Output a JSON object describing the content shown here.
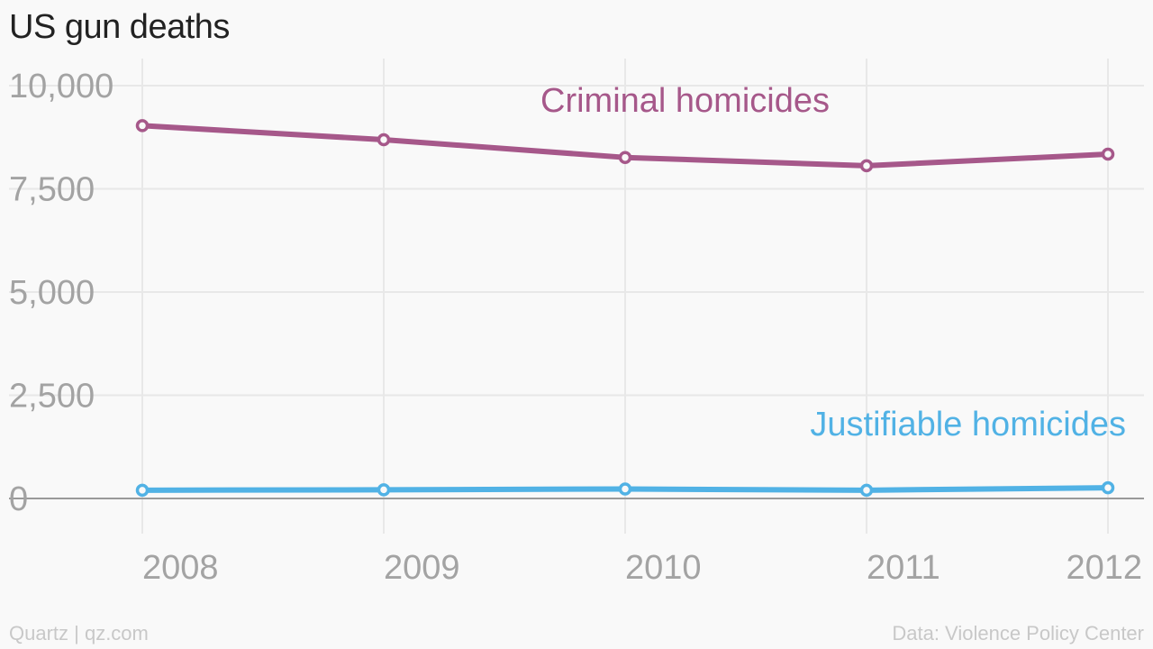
{
  "title": "US gun deaths",
  "footer": {
    "left": "Quartz | qz.com",
    "right": "Data: Violence Policy Center"
  },
  "colors": {
    "background": "#f9f9f9",
    "grid": "#e8e8e8",
    "baseline": "#9a9a9a",
    "tick_text": "#a3a3a3",
    "title_text": "#222222",
    "footer_text": "#c8c8c8",
    "criminal": "#a6588a",
    "justifiable": "#51b2e5"
  },
  "chart_data": {
    "type": "line",
    "title": "US gun deaths",
    "x": [
      2008,
      2009,
      2010,
      2011,
      2012
    ],
    "x_tick_labels": [
      "2008",
      "2009",
      "2010",
      "2011",
      "2012"
    ],
    "y_ticks": [
      0,
      2500,
      5000,
      7500,
      10000
    ],
    "y_tick_labels": [
      "0",
      "2,500",
      "5,000",
      "7,500",
      "10,000"
    ],
    "ylim": [
      0,
      10000
    ],
    "grid": true,
    "legend": "direct labels on series",
    "series": [
      {
        "name": "Criminal homicides",
        "color": "#a6588a",
        "values": [
          9030,
          8690,
          8260,
          8060,
          8340
        ]
      },
      {
        "name": "Justifiable homicides",
        "color": "#51b2e5",
        "values": [
          200,
          210,
          230,
          200,
          260
        ]
      }
    ]
  }
}
